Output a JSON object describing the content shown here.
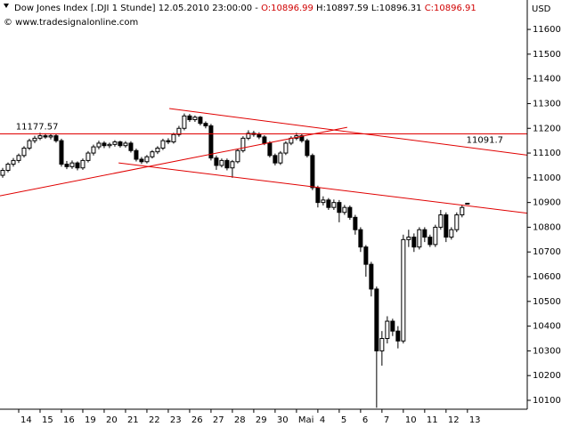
{
  "chart_data": {
    "type": "candlestick",
    "header": {
      "prefix": "Dow Jones Index [.DJI  1 Stunde] 12.05.2010 23:00:00 -",
      "open": "O:10896.99",
      "high": "H:10897.59",
      "low": "L:10896.31",
      "close": "C:10896.91"
    },
    "copyright": "© www.tradesignalonline.com",
    "y_label": "USD",
    "open": [
      11010,
      11030,
      11055,
      11070,
      11090,
      11120,
      11150,
      11160,
      11170,
      11165,
      11170,
      11150,
      11055,
      11045,
      11060,
      11040,
      11070,
      11100,
      11125,
      11140,
      11130,
      11135,
      11145,
      11130,
      11140,
      11110,
      11075,
      11065,
      11085,
      11105,
      11120,
      11150,
      11145,
      11175,
      11200,
      11250,
      11235,
      11245,
      11220,
      11210,
      11080,
      11050,
      11070,
      11040,
      11065,
      11110,
      11160,
      11180,
      11175,
      11165,
      11140,
      11090,
      11060,
      11100,
      11140,
      11160,
      11170,
      11150,
      11090,
      10960,
      10900,
      10910,
      10880,
      10900,
      10860,
      10880,
      10840,
      10790,
      10720,
      10650,
      10550,
      10300,
      10350,
      10420,
      10380,
      10340,
      10750,
      10760,
      10720,
      10790,
      10760,
      10730,
      10800,
      10850,
      10760,
      10790,
      10850,
      10896.99
    ],
    "high": [
      11040,
      11062,
      11080,
      11098,
      11128,
      11158,
      11170,
      11182,
      11180,
      11178,
      11176,
      11158,
      11068,
      11070,
      11066,
      11078,
      11108,
      11134,
      11150,
      11148,
      11142,
      11152,
      11150,
      11148,
      11148,
      11118,
      11084,
      11092,
      11112,
      11128,
      11158,
      11160,
      11182,
      11210,
      11260,
      11258,
      11252,
      11250,
      11228,
      11218,
      11090,
      11078,
      11078,
      11072,
      11118,
      11168,
      11192,
      11190,
      11184,
      11172,
      11148,
      11098,
      11108,
      11148,
      11168,
      11182,
      11178,
      11158,
      11098,
      10968,
      10925,
      10918,
      10912,
      10910,
      10890,
      10888,
      10850,
      10800,
      10728,
      10660,
      10560,
      10380,
      10440,
      10430,
      10400,
      10770,
      10790,
      10775,
      10800,
      10800,
      10770,
      10810,
      10870,
      10860,
      10800,
      10860,
      10890,
      10897.59
    ],
    "low": [
      11000,
      11022,
      11045,
      11060,
      11082,
      11112,
      11140,
      11152,
      11158,
      11155,
      11142,
      11045,
      11035,
      11036,
      11030,
      11032,
      11062,
      11090,
      11115,
      11120,
      11120,
      11126,
      11122,
      11122,
      11102,
      11066,
      11056,
      11058,
      11078,
      11096,
      11112,
      11136,
      11138,
      11166,
      11192,
      11226,
      11226,
      11212,
      11200,
      11070,
      11032,
      11042,
      11030,
      11000,
      11058,
      11102,
      11152,
      11166,
      11156,
      11132,
      11082,
      11050,
      11052,
      11092,
      11132,
      11152,
      11142,
      11082,
      10950,
      10880,
      10888,
      10870,
      10870,
      10820,
      10850,
      10830,
      10770,
      10700,
      10600,
      10520,
      10070,
      10240,
      10330,
      10360,
      10310,
      10330,
      10720,
      10700,
      10710,
      10740,
      10720,
      10720,
      10790,
      10740,
      10750,
      10780,
      10840,
      10896.31
    ],
    "close": [
      11030,
      11055,
      11070,
      11090,
      11120,
      11150,
      11160,
      11170,
      11165,
      11170,
      11150,
      11055,
      11045,
      11060,
      11040,
      11070,
      11100,
      11125,
      11140,
      11130,
      11135,
      11145,
      11130,
      11140,
      11110,
      11075,
      11065,
      11085,
      11105,
      11120,
      11150,
      11145,
      11175,
      11200,
      11250,
      11235,
      11245,
      11220,
      11210,
      11080,
      11050,
      11070,
      11040,
      11065,
      11110,
      11160,
      11180,
      11175,
      11165,
      11140,
      11090,
      11060,
      11100,
      11140,
      11160,
      11170,
      11150,
      11090,
      10960,
      10900,
      10910,
      10880,
      10900,
      10860,
      10880,
      10840,
      10790,
      10720,
      10650,
      10550,
      10300,
      10350,
      10420,
      10380,
      10340,
      10750,
      10760,
      10720,
      10790,
      10760,
      10730,
      10800,
      10850,
      10760,
      10790,
      10850,
      10880,
      10896.91
    ],
    "xlim": [
      -0.5,
      98.2
    ],
    "ylim": [
      10064,
      11719
    ],
    "yticks": [
      10100,
      10200,
      10300,
      10400,
      10500,
      10600,
      10700,
      10800,
      10900,
      11000,
      11100,
      11200,
      11300,
      11400,
      11500,
      11600
    ],
    "xticks": [
      {
        "value": 3,
        "label": "14"
      },
      {
        "value": 7,
        "label": "15"
      },
      {
        "value": 11,
        "label": "16"
      },
      {
        "value": 15,
        "label": "19"
      },
      {
        "value": 19,
        "label": "20"
      },
      {
        "value": 23,
        "label": "21"
      },
      {
        "value": 27,
        "label": "22"
      },
      {
        "value": 31,
        "label": "23"
      },
      {
        "value": 35,
        "label": "26"
      },
      {
        "value": 39,
        "label": "27"
      },
      {
        "value": 43,
        "label": "28"
      },
      {
        "value": 47,
        "label": "29"
      },
      {
        "value": 51,
        "label": "30"
      },
      {
        "value": 55,
        "label": "Mai"
      },
      {
        "value": 59,
        "label": "4"
      },
      {
        "value": 63,
        "label": "5"
      },
      {
        "value": 67,
        "label": "6"
      },
      {
        "value": 71,
        "label": "7"
      },
      {
        "value": 75,
        "label": "10"
      },
      {
        "value": 79,
        "label": "11"
      },
      {
        "value": 83,
        "label": "12"
      },
      {
        "value": 87,
        "label": "13"
      }
    ],
    "trendlines": [
      {
        "label": "11177.57",
        "x": [
          -0.5,
          98.2
        ],
        "y": [
          11177.57,
          11177.57
        ]
      },
      {
        "label": "11091.7",
        "x": [
          31.2,
          98.2
        ],
        "y": [
          11280,
          11091.7
        ]
      },
      {
        "x": [
          21.7,
          98.2
        ],
        "y": [
          11060,
          10857
        ]
      },
      {
        "x": [
          -0.5,
          64.5
        ],
        "y": [
          10927,
          11204
        ]
      }
    ],
    "trendline_color": "#e00000",
    "up_color": "#ffffff",
    "down_color": "#000000"
  }
}
